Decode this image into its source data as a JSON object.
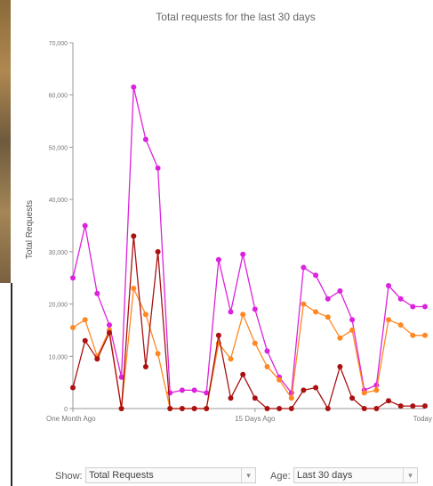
{
  "chart_data": {
    "type": "line",
    "title": "Total requests for the last 30 days",
    "ylabel": "Total Requests",
    "xlabel": "",
    "ylim": [
      0,
      70000
    ],
    "y_ticks": [
      "0",
      "10,000",
      "20,000",
      "30,000",
      "40,000",
      "50,000",
      "60,000",
      "70,000"
    ],
    "y_tick_values": [
      0,
      10000,
      20000,
      30000,
      40000,
      50000,
      60000,
      70000
    ],
    "x_tick_labels": [
      {
        "index": 0,
        "label": "One Month Ago"
      },
      {
        "index": 15,
        "label": "15 Days Ago"
      },
      {
        "index": 30,
        "label": "Today"
      }
    ],
    "grid": false,
    "series": [
      {
        "color": "#dd22dd",
        "values": [
          25000,
          35000,
          22000,
          16000,
          6000,
          61500,
          51500,
          46000,
          3000,
          3500,
          3500,
          3000,
          28500,
          18500,
          29500,
          19000,
          11000,
          6000,
          3000,
          27000,
          25500,
          21000,
          22500,
          17000,
          3500,
          4500,
          23500,
          21000,
          19500,
          19500
        ]
      },
      {
        "color": "#ff8822",
        "values": [
          15500,
          17000,
          10000,
          15000,
          0,
          23000,
          18000,
          10500,
          0,
          0,
          0,
          0,
          12500,
          9500,
          18000,
          12500,
          8000,
          5500,
          2000,
          20000,
          18500,
          17500,
          13500,
          15000,
          3000,
          3500,
          17000,
          16000,
          14000,
          14000
        ]
      },
      {
        "color": "#aa1111",
        "values": [
          4000,
          13000,
          9500,
          14500,
          0,
          33000,
          8000,
          30000,
          0,
          0,
          0,
          0,
          14000,
          2000,
          6500,
          2000,
          0,
          0,
          0,
          3500,
          4000,
          0,
          8000,
          2000,
          0,
          0,
          1500,
          500,
          500,
          500
        ]
      }
    ]
  },
  "controls": {
    "show_label": "Show:",
    "show_value": "Total Requests",
    "age_label": "Age:",
    "age_value": "Last 30 days"
  },
  "colors": {
    "axis": "#999999",
    "text": "#555555"
  }
}
